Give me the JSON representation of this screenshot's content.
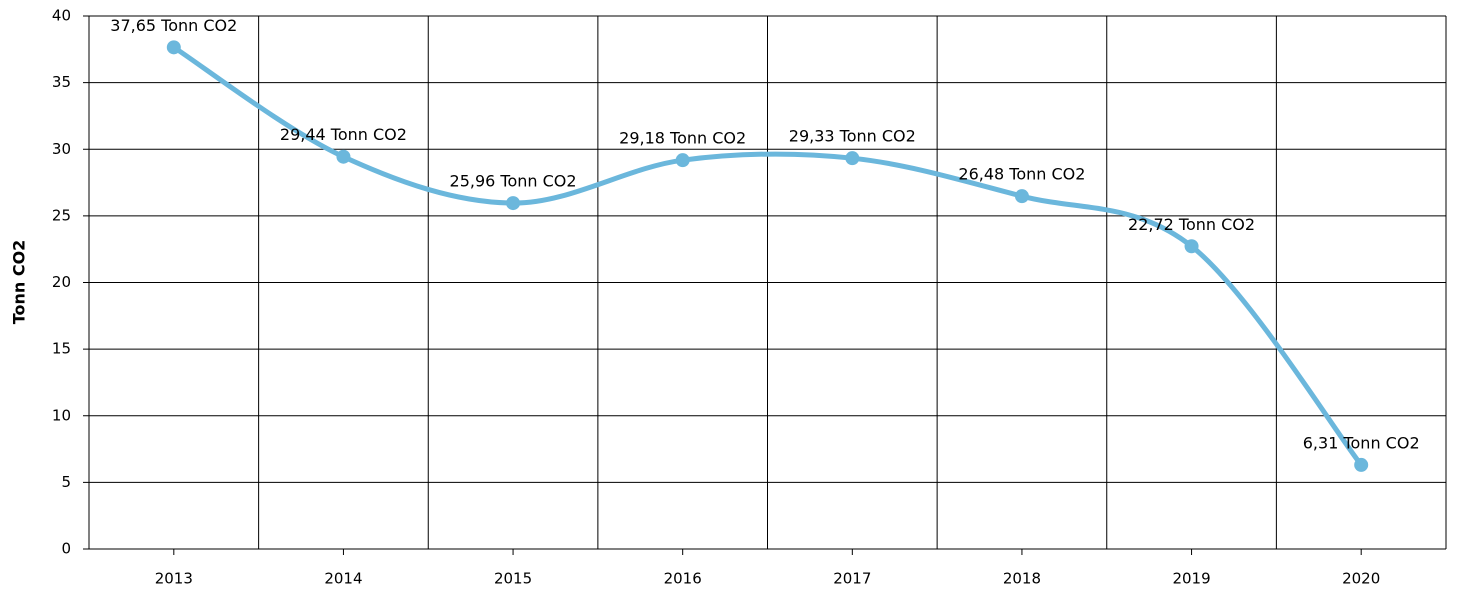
{
  "chart_data": {
    "type": "line",
    "y_label": "Tonn CO2",
    "categories": [
      "2013",
      "2014",
      "2015",
      "2016",
      "2017",
      "2018",
      "2019",
      "2020"
    ],
    "series": [
      {
        "name": "Tonn CO2",
        "color": "#6bb7dc",
        "values": [
          37.65,
          29.44,
          25.96,
          29.18,
          29.33,
          26.48,
          22.72,
          6.31
        ],
        "value_labels": [
          "37,65 Tonn CO2",
          "29,44 Tonn CO2",
          "25,96 Tonn CO2",
          "29,18 Tonn CO2",
          "29,33 Tonn CO2",
          "26,48 Tonn CO2",
          "22,72 Tonn CO2",
          "6,31 Tonn CO2"
        ]
      }
    ],
    "ylim": [
      0,
      40
    ],
    "yticks": [
      0,
      5,
      10,
      15,
      20,
      25,
      30,
      35,
      40
    ],
    "grid": true,
    "smooth": true
  }
}
